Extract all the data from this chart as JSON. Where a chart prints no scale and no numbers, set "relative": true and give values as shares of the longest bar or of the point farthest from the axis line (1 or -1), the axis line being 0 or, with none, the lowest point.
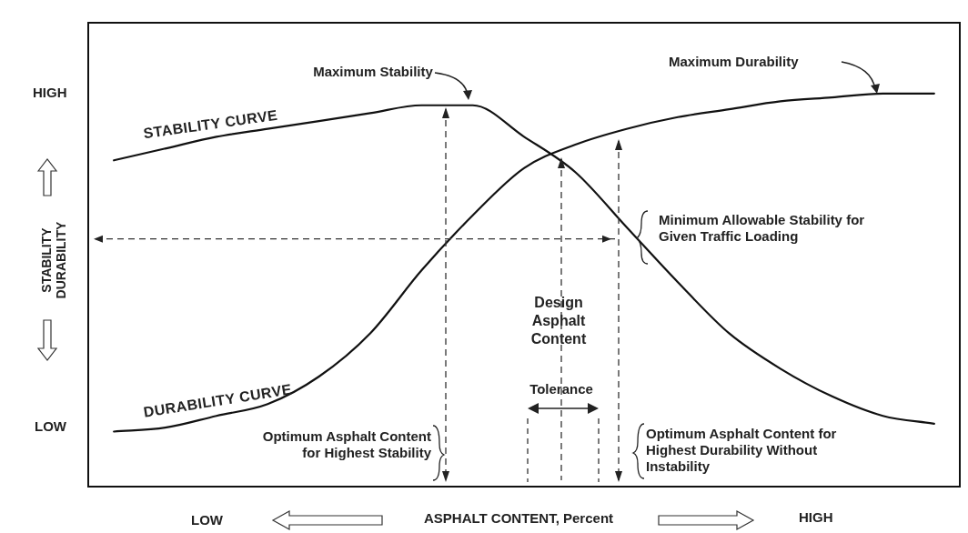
{
  "chart_data": {
    "type": "line",
    "relative": true,
    "xlabel": "ASPHALT CONTENT, Percent",
    "ylabel": "STABILITY DURABILITY",
    "categories": [
      null,
      null,
      null,
      null,
      null,
      null,
      null,
      null,
      null,
      null,
      null,
      null,
      null,
      null,
      null,
      null,
      null
    ],
    "series": [
      {
        "name": "STABILITY CURVE",
        "color": "#111111",
        "values": [
          0.83,
          0.86,
          0.89,
          0.91,
          0.93,
          0.95,
          0.97,
          0.97,
          0.89,
          0.8,
          0.66,
          0.52,
          0.39,
          0.3,
          0.23,
          0.18,
          0.16
        ]
      },
      {
        "name": "DURABILITY CURVE",
        "color": "#111111",
        "values": [
          0.14,
          0.15,
          0.18,
          0.21,
          0.28,
          0.39,
          0.55,
          0.69,
          0.81,
          0.87,
          0.91,
          0.94,
          0.96,
          0.98,
          0.99,
          1,
          1
        ]
      }
    ],
    "ref_lines": [
      {
        "axis": "y",
        "value": 0.63,
        "label": "Minimum Allowable Stability for Given Traffic Loading",
        "line_style": "dashed",
        "color": "#333333"
      }
    ],
    "annotations": [
      "Maximum Stability",
      "Maximum Durability",
      "Design Asphalt Content",
      "Tolerance",
      "Optimum Asphalt Content for Highest Stability",
      "Optimum Asphalt Content for Highest Durability Without Instability",
      "HIGH",
      "LOW",
      "LOW",
      "HIGH"
    ],
    "marker": "none",
    "line_style": "solid",
    "legend": false,
    "tick_labels": false
  }
}
